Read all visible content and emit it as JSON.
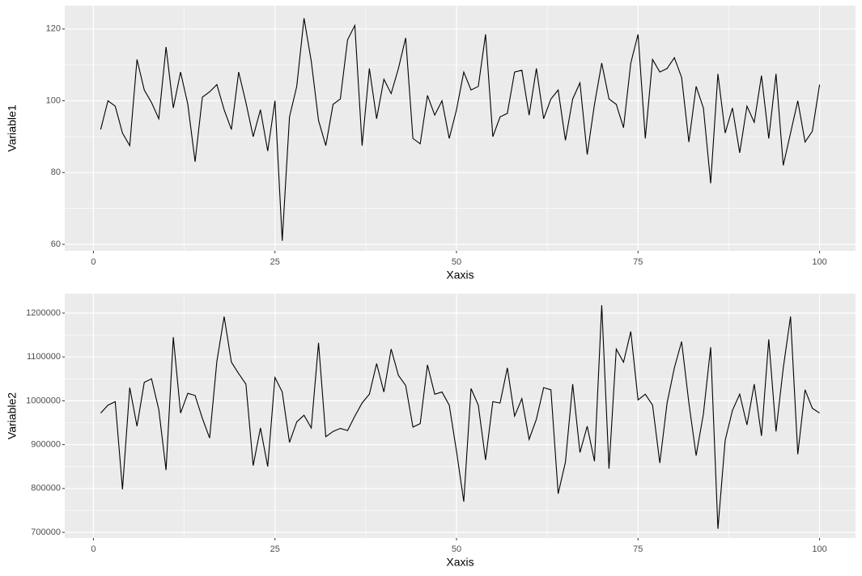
{
  "chart_data": [
    {
      "type": "line",
      "x_label": "Xaxis",
      "y_label": "Variable1",
      "x": [
        1,
        2,
        3,
        4,
        5,
        6,
        7,
        8,
        9,
        10,
        11,
        12,
        13,
        14,
        15,
        16,
        17,
        18,
        19,
        20,
        21,
        22,
        23,
        24,
        25,
        26,
        27,
        28,
        29,
        30,
        31,
        32,
        33,
        34,
        35,
        36,
        37,
        38,
        39,
        40,
        41,
        42,
        43,
        44,
        45,
        46,
        47,
        48,
        49,
        50,
        51,
        52,
        53,
        54,
        55,
        56,
        57,
        58,
        59,
        60,
        61,
        62,
        63,
        64,
        65,
        66,
        67,
        68,
        69,
        70,
        71,
        72,
        73,
        74,
        75,
        76,
        77,
        78,
        79,
        80,
        81,
        82,
        83,
        84,
        85,
        86,
        87,
        88,
        89,
        90,
        91,
        92,
        93,
        94,
        95,
        96,
        97,
        98,
        99,
        100
      ],
      "values": [
        92,
        100,
        98.5,
        91,
        87.5,
        111.5,
        103,
        99.5,
        95,
        115,
        98,
        108,
        99,
        83,
        101,
        102.5,
        104.5,
        97.5,
        92,
        108,
        99.5,
        90,
        97.5,
        86,
        100,
        61,
        95.5,
        104,
        123,
        111,
        94.5,
        87.5,
        99,
        100.5,
        117,
        121,
        87.5,
        109,
        95,
        106,
        102,
        109,
        117.5,
        89.5,
        88,
        101.5,
        96,
        100,
        89.5,
        97.5,
        108,
        103,
        104,
        118.5,
        90,
        95.5,
        96.5,
        108,
        108.5,
        96,
        109,
        95,
        100.5,
        103,
        89,
        100.5,
        105,
        85,
        99,
        110.5,
        100.5,
        99,
        92.5,
        110.5,
        118.5,
        89.5,
        111.5,
        108,
        109,
        112,
        106.5,
        88.5,
        104,
        98,
        77,
        107.5,
        91,
        98,
        85.5,
        98.5,
        94,
        107,
        89.5,
        107.5,
        82,
        91,
        100,
        88.5,
        91.5,
        104.5
      ],
      "color": "#000000",
      "xlim": [
        -3.95,
        104.95
      ],
      "xticks": [
        0,
        25,
        50,
        75,
        100
      ],
      "ylim": [
        58.2,
        126.5
      ],
      "yticks": [
        60,
        80,
        100,
        120
      ],
      "grid": true
    },
    {
      "type": "line",
      "x_label": "Xaxis",
      "y_label": "Variable2",
      "x": [
        1,
        2,
        3,
        4,
        5,
        6,
        7,
        8,
        9,
        10,
        11,
        12,
        13,
        14,
        15,
        16,
        17,
        18,
        19,
        20,
        21,
        22,
        23,
        24,
        25,
        26,
        27,
        28,
        29,
        30,
        31,
        32,
        33,
        34,
        35,
        36,
        37,
        38,
        39,
        40,
        41,
        42,
        43,
        44,
        45,
        46,
        47,
        48,
        49,
        50,
        51,
        52,
        53,
        54,
        55,
        56,
        57,
        58,
        59,
        60,
        61,
        62,
        63,
        64,
        65,
        66,
        67,
        68,
        69,
        70,
        71,
        72,
        73,
        74,
        75,
        76,
        77,
        78,
        79,
        80,
        81,
        82,
        83,
        84,
        85,
        86,
        87,
        88,
        89,
        90,
        91,
        92,
        93,
        94,
        95,
        96,
        97,
        98,
        99,
        100
      ],
      "values": [
        972000,
        990000,
        998000,
        798000,
        1030000,
        942000,
        1042000,
        1050000,
        980000,
        842000,
        1145000,
        972000,
        1017000,
        1012000,
        960000,
        915000,
        1090000,
        1192000,
        1088000,
        1062000,
        1038000,
        852000,
        938000,
        850000,
        1053000,
        1020000,
        905000,
        952000,
        967000,
        938000,
        1132000,
        918000,
        930000,
        937000,
        932000,
        965000,
        995000,
        1015000,
        1085000,
        1020000,
        1118000,
        1058000,
        1035000,
        940000,
        948000,
        1082000,
        1015000,
        1020000,
        990000,
        885000,
        770000,
        1028000,
        990000,
        865000,
        998000,
        995000,
        1075000,
        965000,
        1005000,
        912000,
        958000,
        1030000,
        1025000,
        788000,
        860000,
        1038000,
        882000,
        942000,
        862000,
        1218000,
        845000,
        1118000,
        1088000,
        1158000,
        1002000,
        1015000,
        990000,
        858000,
        995000,
        1075000,
        1135000,
        995000,
        875000,
        970000,
        1122000,
        708000,
        910000,
        978000,
        1015000,
        945000,
        1038000,
        920000,
        1140000,
        930000,
        1075000,
        1192000,
        878000,
        1025000,
        983000,
        972000
      ],
      "color": "#000000",
      "xlim": [
        -3.95,
        104.95
      ],
      "xticks": [
        0,
        25,
        50,
        75,
        100
      ],
      "ylim": [
        687085,
        1244280
      ],
      "yticks": [
        700000,
        800000,
        900000,
        1000000,
        1100000,
        1200000
      ],
      "grid": true
    }
  ]
}
